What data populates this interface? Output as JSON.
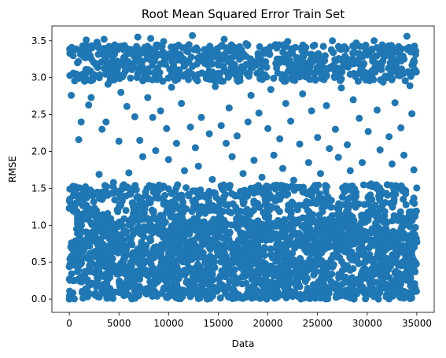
{
  "chart_data": {
    "type": "scatter",
    "title": "Root Mean Squared Error Train Set",
    "xlabel": "Data",
    "ylabel": "RMSE",
    "xlim": [
      -1750,
      36750
    ],
    "ylim": [
      -0.18,
      3.7
    ],
    "xticks": [
      0,
      5000,
      10000,
      15000,
      20000,
      25000,
      30000,
      35000
    ],
    "yticks": [
      0.0,
      0.5,
      1.0,
      1.5,
      2.0,
      2.5,
      3.0,
      3.5
    ],
    "xtick_labels": [
      "0",
      "5000",
      "10000",
      "15000",
      "20000",
      "25000",
      "30000",
      "35000"
    ],
    "ytick_labels": [
      "0.0",
      "0.5",
      "1.0",
      "1.5",
      "2.0",
      "2.5",
      "3.0",
      "3.5"
    ],
    "grid": false,
    "color": "#1f77b4",
    "series": [
      {
        "points": [
          [
            200,
            2.76
          ],
          [
            450,
            3.38
          ],
          [
            700,
            3.05
          ],
          [
            950,
            2.16
          ],
          [
            1200,
            2.4
          ],
          [
            1500,
            3.28
          ],
          [
            1700,
            3.51
          ],
          [
            1950,
            2.63
          ],
          [
            2200,
            2.73
          ],
          [
            2450,
            3.21
          ],
          [
            2800,
            3.48
          ],
          [
            3000,
            1.69
          ],
          [
            3300,
            2.3
          ],
          [
            3500,
            3.52
          ],
          [
            3700,
            2.4
          ],
          [
            3900,
            2.91
          ],
          [
            4200,
            3.19
          ],
          [
            4450,
            1.58
          ],
          [
            4700,
            3.43
          ],
          [
            5000,
            2.14
          ],
          [
            5200,
            2.8
          ],
          [
            5500,
            3.38
          ],
          [
            5800,
            2.61
          ],
          [
            6000,
            1.71
          ],
          [
            6300,
            3.11
          ],
          [
            6600,
            2.47
          ],
          [
            6900,
            3.55
          ],
          [
            7100,
            2.15
          ],
          [
            7400,
            1.93
          ],
          [
            7600,
            3.41
          ],
          [
            7900,
            2.73
          ],
          [
            8200,
            3.53
          ],
          [
            8400,
            2.46
          ],
          [
            8700,
            2.01
          ],
          [
            8900,
            3.13
          ],
          [
            9200,
            2.55
          ],
          [
            9500,
            3.49
          ],
          [
            9800,
            2.31
          ],
          [
            10000,
            1.89
          ],
          [
            10300,
            2.87
          ],
          [
            10500,
            3.18
          ],
          [
            10800,
            2.11
          ],
          [
            11000,
            3.44
          ],
          [
            11300,
            2.65
          ],
          [
            11600,
            1.74
          ],
          [
            11900,
            3.21
          ],
          [
            12200,
            2.33
          ],
          [
            12400,
            3.57
          ],
          [
            12700,
            2.05
          ],
          [
            13000,
            1.8
          ],
          [
            13300,
            2.46
          ],
          [
            13600,
            3.38
          ],
          [
            13800,
            2.99
          ],
          [
            14100,
            2.24
          ],
          [
            14400,
            1.62
          ],
          [
            14700,
            2.88
          ],
          [
            15000,
            3.19
          ],
          [
            15300,
            2.35
          ],
          [
            15600,
            3.52
          ],
          [
            15800,
            2.11
          ],
          [
            16100,
            2.59
          ],
          [
            16400,
            1.93
          ],
          [
            16700,
            3.3
          ],
          [
            16900,
            2.21
          ],
          [
            17200,
            2.96
          ],
          [
            17500,
            1.7
          ],
          [
            17800,
            3.46
          ],
          [
            18000,
            2.4
          ],
          [
            18300,
            2.76
          ],
          [
            18600,
            1.88
          ],
          [
            18900,
            3.22
          ],
          [
            19100,
            2.52
          ],
          [
            19400,
            1.65
          ],
          [
            19700,
            3.04
          ],
          [
            20000,
            2.31
          ],
          [
            20300,
            2.84
          ],
          [
            20600,
            1.95
          ],
          [
            20900,
            3.4
          ],
          [
            21200,
            2.17
          ],
          [
            21500,
            1.77
          ],
          [
            21800,
            2.65
          ],
          [
            22000,
            3.49
          ],
          [
            22300,
            2.41
          ],
          [
            22600,
            1.61
          ],
          [
            22900,
            3.27
          ],
          [
            23200,
            2.1
          ],
          [
            23500,
            2.78
          ],
          [
            23800,
            3.01
          ],
          [
            24100,
            1.85
          ],
          [
            24400,
            2.55
          ],
          [
            24700,
            3.44
          ],
          [
            25000,
            2.19
          ],
          [
            25300,
            1.7
          ],
          [
            25600,
            3.12
          ],
          [
            25900,
            2.62
          ],
          [
            26200,
            2.04
          ],
          [
            26500,
            3.5
          ],
          [
            26800,
            2.3
          ],
          [
            27100,
            1.92
          ],
          [
            27400,
            2.86
          ],
          [
            27700,
            3.21
          ],
          [
            28000,
            2.09
          ],
          [
            28300,
            1.74
          ],
          [
            28600,
            2.7
          ],
          [
            28900,
            3.47
          ],
          [
            29200,
            2.45
          ],
          [
            29500,
            1.85
          ],
          [
            29800,
            3.07
          ],
          [
            30100,
            2.27
          ],
          [
            30400,
            1.56
          ],
          [
            30700,
            3.5
          ],
          [
            31000,
            2.56
          ],
          [
            31300,
            2.02
          ],
          [
            31600,
            2.94
          ],
          [
            31900,
            3.3
          ],
          [
            32200,
            2.2
          ],
          [
            32500,
            1.83
          ],
          [
            32800,
            2.66
          ],
          [
            33100,
            3.11
          ],
          [
            33400,
            2.32
          ],
          [
            33700,
            1.95
          ],
          [
            34000,
            3.56
          ],
          [
            34300,
            2.89
          ],
          [
            34500,
            2.51
          ],
          [
            34700,
            1.75
          ],
          [
            34900,
            3.36
          ]
        ]
      }
    ]
  }
}
